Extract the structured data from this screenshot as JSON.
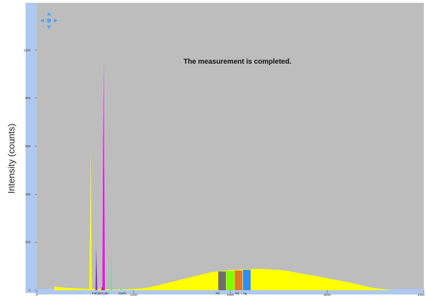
{
  "ylabel": "Intensity (counts)",
  "status_message": "The measurement is completed.",
  "colors": {
    "plot_background": "#bdbdbd",
    "left_strip": "#aec8ef",
    "bottom_strip": "#aec8ef",
    "spectrum": "#ffff00",
    "nav_arrows": "#4fa4f2"
  },
  "chart_data": {
    "type": "area",
    "title": "",
    "xlabel": "",
    "ylabel": "Intensity (counts)",
    "xlim": [
      0,
      4000
    ],
    "ylim": [
      0,
      1150
    ],
    "x_ticks": [
      {
        "value": 0,
        "label": "0"
      },
      {
        "value": 1000,
        "label": "1000"
      },
      {
        "value": 2000,
        "label": "2000"
      },
      {
        "value": 3000,
        "label": "3000"
      },
      {
        "value": 4000,
        "label": "4000"
      }
    ],
    "y_ticks": [
      {
        "value": 0,
        "label": "0"
      },
      {
        "value": 200,
        "label": "200"
      },
      {
        "value": 400,
        "label": "400"
      },
      {
        "value": 600,
        "label": "600"
      },
      {
        "value": 800,
        "label": "800"
      },
      {
        "value": 1000,
        "label": "1000"
      }
    ],
    "continuum": {
      "color": "#ffff00",
      "points": [
        [
          180,
          15
        ],
        [
          220,
          13
        ],
        [
          300,
          10
        ],
        [
          400,
          8
        ],
        [
          500,
          6
        ],
        [
          600,
          5
        ],
        [
          700,
          4
        ],
        [
          800,
          3
        ],
        [
          900,
          3
        ],
        [
          1000,
          5
        ],
        [
          1100,
          8
        ],
        [
          1200,
          15
        ],
        [
          1300,
          25
        ],
        [
          1400,
          35
        ],
        [
          1500,
          45
        ],
        [
          1600,
          55
        ],
        [
          1700,
          65
        ],
        [
          1800,
          75
        ],
        [
          1900,
          80
        ],
        [
          2000,
          83
        ],
        [
          2100,
          86
        ],
        [
          2200,
          88
        ],
        [
          2300,
          89
        ],
        [
          2400,
          87
        ],
        [
          2500,
          85
        ],
        [
          2600,
          80
        ],
        [
          2700,
          72
        ],
        [
          2800,
          65
        ],
        [
          2900,
          58
        ],
        [
          3000,
          50
        ],
        [
          3100,
          42
        ],
        [
          3200,
          35
        ],
        [
          3300,
          26
        ],
        [
          3400,
          16
        ],
        [
          3500,
          8
        ],
        [
          3600,
          3
        ],
        [
          3700,
          0
        ]
      ]
    },
    "peaks": [
      {
        "center": 555,
        "height": 600,
        "width": 13,
        "color": "#ffff00"
      },
      {
        "center": 615,
        "height": 185,
        "width": 10,
        "color": "#8a2be2"
      },
      {
        "center": 690,
        "height": 950,
        "width": 13,
        "color": "#ff00ff"
      },
      {
        "center": 770,
        "height": 165,
        "width": 9,
        "color": "#66e0a0"
      },
      {
        "center": 675,
        "height": 18,
        "width": 8,
        "color": "#b22222"
      },
      {
        "center": 870,
        "height": 12,
        "width": 8,
        "color": "#40e0d0"
      }
    ],
    "bands": [
      {
        "x": [
          1875,
          1955
        ],
        "height": 78,
        "color": "#6e6e6e"
      },
      {
        "x": [
          1960,
          2040
        ],
        "height": 80,
        "color": "#7cfc00"
      },
      {
        "x": [
          2045,
          2125
        ],
        "height": 82,
        "color": "#e07a2a"
      },
      {
        "x": [
          2130,
          2210
        ],
        "height": 85,
        "color": "#2e8bff"
      }
    ],
    "element_labels": [
      {
        "text": "Fe",
        "value": 590
      },
      {
        "text": "Co",
        "value": 625
      },
      {
        "text": "Ni",
        "value": 655
      },
      {
        "text": "Cu",
        "value": 695
      },
      {
        "text": "Zn",
        "value": 725
      },
      {
        "text": "Ga",
        "value": 865
      },
      {
        "text": "Pt",
        "value": 905
      },
      {
        "text": "Rh",
        "value": 1870
      },
      {
        "text": "Pd",
        "value": 2070
      },
      {
        "text": "Ag",
        "value": 2150
      }
    ]
  }
}
